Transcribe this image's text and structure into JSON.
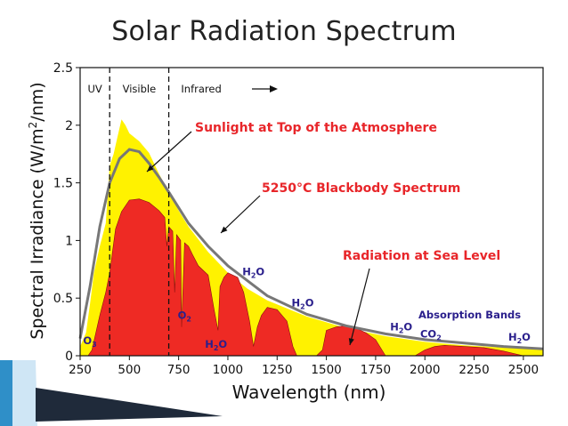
{
  "slide": {
    "title": "Solar Radiation Spectrum"
  },
  "chart_data": {
    "type": "area",
    "xlabel": "Wavelength (nm)",
    "ylabel": "Spectral Irradiance (W/m²/nm)",
    "ylabel_parts": [
      "Spectral Irradiance (W/m",
      "2",
      "/nm)"
    ],
    "xlim": [
      250,
      2600
    ],
    "ylim": [
      0,
      2.5
    ],
    "x_ticks": [
      250,
      500,
      750,
      1000,
      1250,
      1500,
      1750,
      2000,
      2250,
      2500
    ],
    "y_ticks": [
      0,
      0.5,
      1,
      1.5,
      2,
      2.5
    ],
    "y_tick_labels": [
      "0",
      "0.5",
      "1",
      "1.5",
      "2",
      "2.5"
    ],
    "grid": false,
    "series": [
      {
        "name": "Sunlight at Top of the Atmosphere",
        "color": "#fff200",
        "x": [
          250,
          280,
          300,
          320,
          350,
          380,
          400,
          420,
          440,
          460,
          480,
          500,
          550,
          600,
          650,
          700,
          750,
          800,
          900,
          1000,
          1100,
          1200,
          1400,
          1600,
          1800,
          2000,
          2200,
          2400,
          2600
        ],
        "y": [
          0.08,
          0.2,
          0.45,
          0.72,
          0.95,
          1.15,
          1.65,
          1.75,
          1.9,
          2.05,
          2.0,
          1.93,
          1.86,
          1.76,
          1.58,
          1.42,
          1.26,
          1.12,
          0.9,
          0.72,
          0.58,
          0.48,
          0.34,
          0.24,
          0.17,
          0.12,
          0.09,
          0.07,
          0.05
        ]
      },
      {
        "name": "Radiation at Sea Level",
        "color": "#ee2a24",
        "x": [
          290,
          310,
          350,
          380,
          400,
          430,
          460,
          500,
          550,
          600,
          650,
          680,
          690,
          700,
          720,
          730,
          740,
          760,
          765,
          780,
          800,
          820,
          850,
          900,
          930,
          950,
          960,
          980,
          1000,
          1050,
          1080,
          1110,
          1130,
          1150,
          1170,
          1200,
          1250,
          1300,
          1330,
          1350,
          1400,
          1450,
          1480,
          1500,
          1550,
          1600,
          1650,
          1700,
          1750,
          1800,
          1850,
          1900,
          1950,
          2000,
          2050,
          2100,
          2200,
          2300,
          2400,
          2500,
          2600
        ],
        "y": [
          0.0,
          0.05,
          0.35,
          0.55,
          0.72,
          1.1,
          1.25,
          1.35,
          1.36,
          1.33,
          1.26,
          1.2,
          0.95,
          1.12,
          1.08,
          0.55,
          1.05,
          1.0,
          0.25,
          0.98,
          0.95,
          0.88,
          0.78,
          0.7,
          0.4,
          0.22,
          0.6,
          0.68,
          0.72,
          0.68,
          0.55,
          0.3,
          0.08,
          0.25,
          0.35,
          0.42,
          0.4,
          0.3,
          0.08,
          0.0,
          0.0,
          0.0,
          0.05,
          0.22,
          0.25,
          0.26,
          0.24,
          0.2,
          0.14,
          0.0,
          0.0,
          0.0,
          0.0,
          0.05,
          0.08,
          0.09,
          0.08,
          0.07,
          0.04,
          0.0,
          0.0
        ]
      },
      {
        "name": "5250°C Blackbody Spectrum",
        "color": "#777777",
        "x": [
          250,
          300,
          350,
          400,
          450,
          500,
          550,
          600,
          650,
          700,
          800,
          900,
          1000,
          1200,
          1400,
          1600,
          1800,
          2000,
          2200,
          2400,
          2600
        ],
        "y": [
          0.15,
          0.6,
          1.12,
          1.5,
          1.71,
          1.79,
          1.77,
          1.67,
          1.55,
          1.42,
          1.15,
          0.95,
          0.78,
          0.52,
          0.36,
          0.26,
          0.19,
          0.14,
          0.11,
          0.08,
          0.06
        ]
      }
    ],
    "regions": [
      {
        "label": "UV",
        "x": 325
      },
      {
        "label": "Visible",
        "x": 550
      },
      {
        "label": "Infrared",
        "x": 865
      }
    ],
    "region_boundaries": [
      400,
      700
    ],
    "annotations": [
      {
        "text": "Sunlight at Top of the Atmosphere",
        "color": "#e8262a"
      },
      {
        "text": "5250°C Blackbody Spectrum",
        "color": "#e8262a"
      },
      {
        "text": "Radiation at Sea Level",
        "color": "#e8262a"
      }
    ],
    "absorption": {
      "title": "Absorption Bands",
      "color": "#2a1f8c",
      "bands": [
        {
          "mol": "O",
          "sub": "3",
          "x": 300,
          "y": 0.1
        },
        {
          "mol": "O",
          "sub": "2",
          "x": 780,
          "y": 0.32
        },
        {
          "mol": "H",
          "sub": "2",
          "tail": "O",
          "x": 940,
          "y": 0.07
        },
        {
          "mol": "H",
          "sub": "2",
          "tail": "O",
          "x": 1130,
          "y": 0.7
        },
        {
          "mol": "H",
          "sub": "2",
          "tail": "O",
          "x": 1380,
          "y": 0.43
        },
        {
          "mol": "H",
          "sub": "2",
          "tail": "O",
          "x": 1880,
          "y": 0.22
        },
        {
          "mol": "CO",
          "sub": "2",
          "x": 2030,
          "y": 0.16
        },
        {
          "mol": "H",
          "sub": "2",
          "tail": "O",
          "x": 2480,
          "y": 0.13
        }
      ]
    }
  }
}
